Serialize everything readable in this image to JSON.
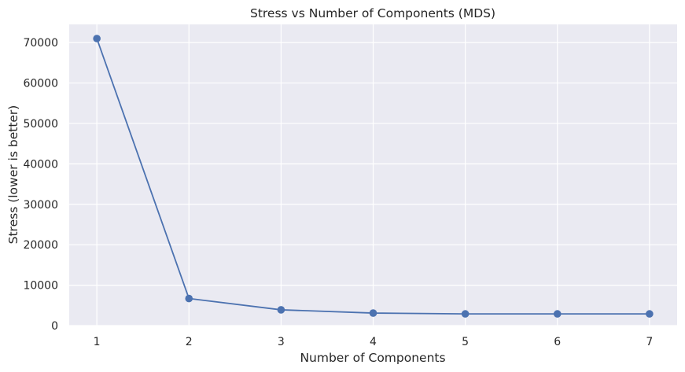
{
  "chart_data": {
    "type": "line",
    "title": "Stress vs Number of Components (MDS)",
    "xlabel": "Number of Components",
    "ylabel": "Stress (lower is better)",
    "x": [
      1,
      2,
      3,
      4,
      5,
      6,
      7
    ],
    "series": [
      {
        "values": [
          71000,
          6700,
          3900,
          3100,
          2900,
          2900,
          2900
        ]
      }
    ],
    "xticks": [
      1,
      2,
      3,
      4,
      5,
      6,
      7
    ],
    "yticks": [
      0,
      10000,
      20000,
      30000,
      40000,
      50000,
      60000,
      70000
    ],
    "xlim": [
      0.7,
      7.3
    ],
    "ylim": [
      0,
      74500
    ],
    "grid": true,
    "marker": "circle",
    "colors": {
      "line": "#4c72b0",
      "plot_background": "#eaeaf2",
      "grid": "#ffffff",
      "text": "#262626"
    }
  }
}
